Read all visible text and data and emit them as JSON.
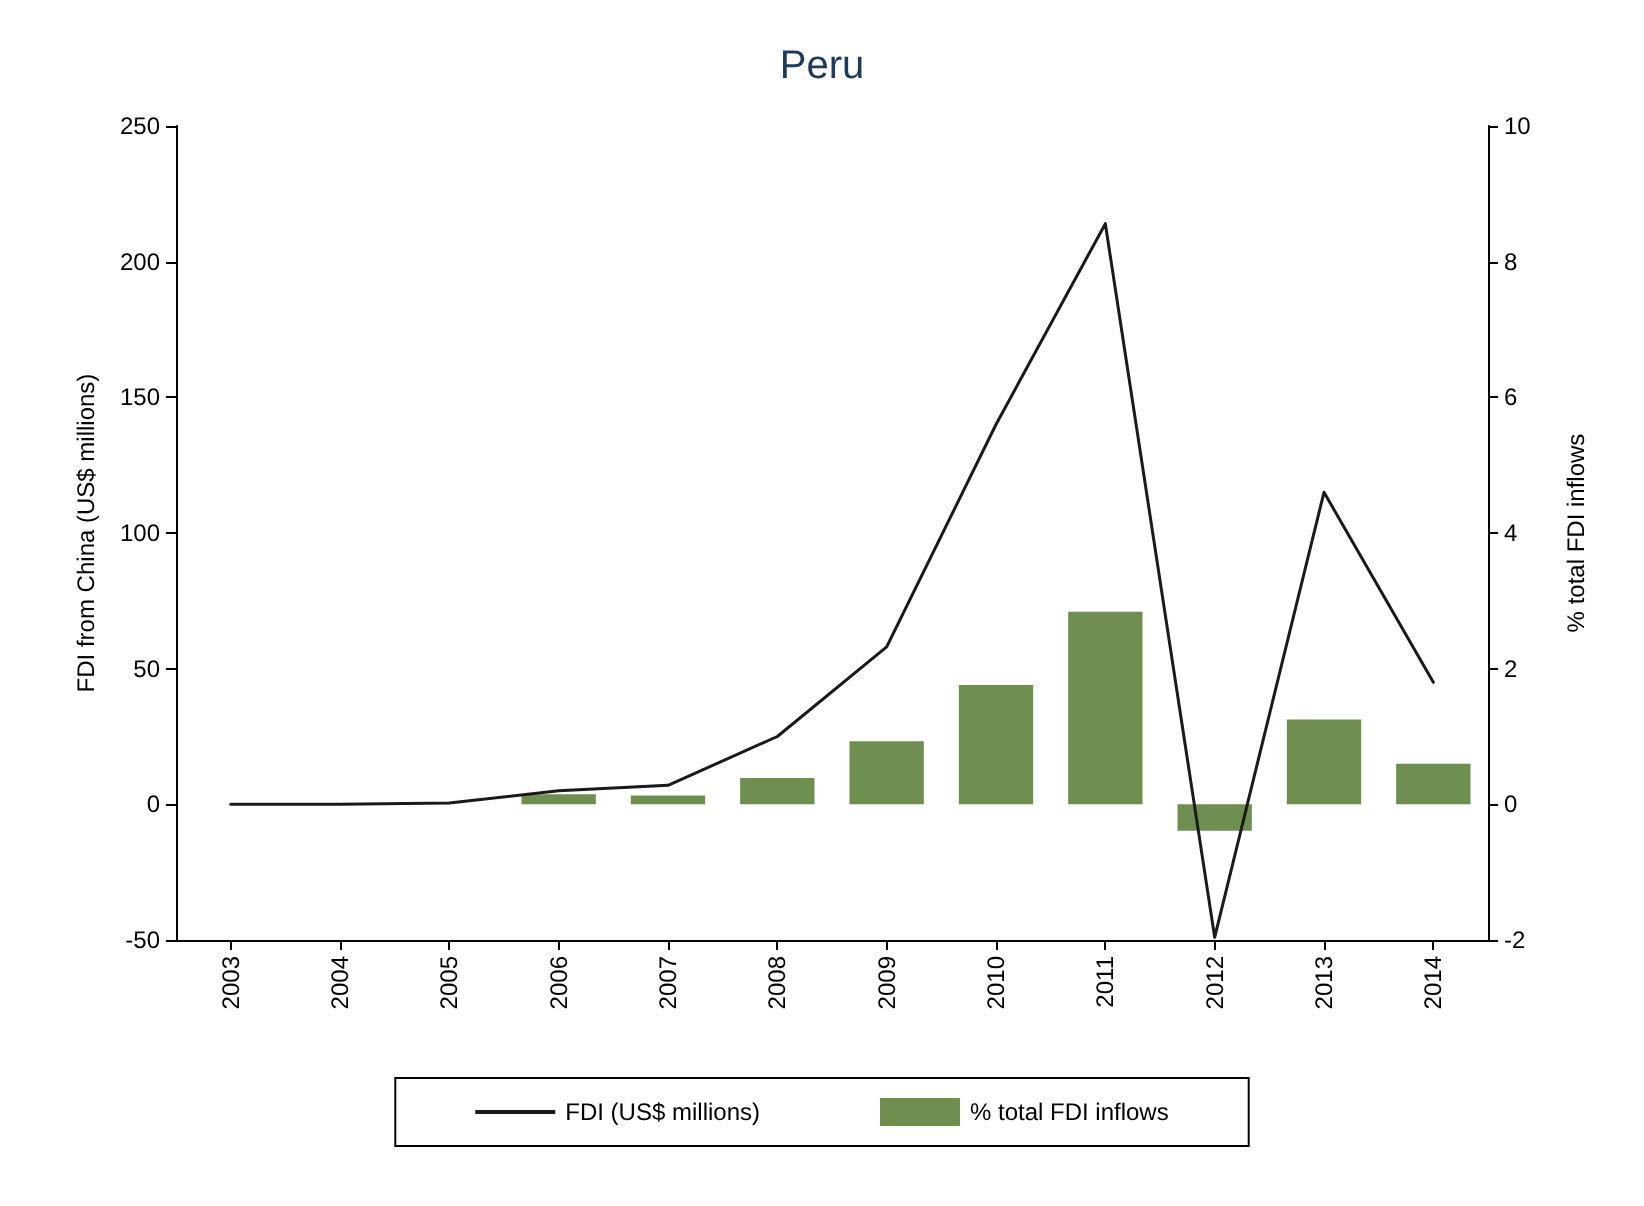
{
  "chart_data": {
    "type": "line",
    "title": "Peru",
    "ylabel": "FDI from China (US$ millions)",
    "y2label": "% total FDI inflows",
    "categories": [
      "2003",
      "2004",
      "2005",
      "2006",
      "2007",
      "2008",
      "2009",
      "2010",
      "2011",
      "2012",
      "2013",
      "2014"
    ],
    "series": [
      {
        "name": "FDI (US$ millions)",
        "color": "#1a1a1a",
        "values": [
          0,
          0,
          0.5,
          5,
          7,
          25,
          58,
          140,
          214,
          -49,
          115,
          45
        ]
      },
      {
        "name": "% total FDI inflows",
        "type": "bar",
        "axis": "y2",
        "color": "#6e8f50",
        "values": [
          null,
          0.01,
          null,
          0.15,
          0.13,
          0.39,
          0.93,
          1.76,
          2.84,
          -0.39,
          1.25,
          0.6
        ]
      }
    ],
    "ylim": [
      -50,
      250
    ],
    "yticks": [
      -50,
      0,
      50,
      100,
      150,
      200,
      250
    ],
    "y2lim": [
      -2,
      10
    ],
    "y2ticks": [
      -2,
      0,
      2,
      4,
      6,
      8,
      10
    ],
    "grid": false,
    "legend": "bottom",
    "line_style": "solid",
    "marker": "none"
  }
}
